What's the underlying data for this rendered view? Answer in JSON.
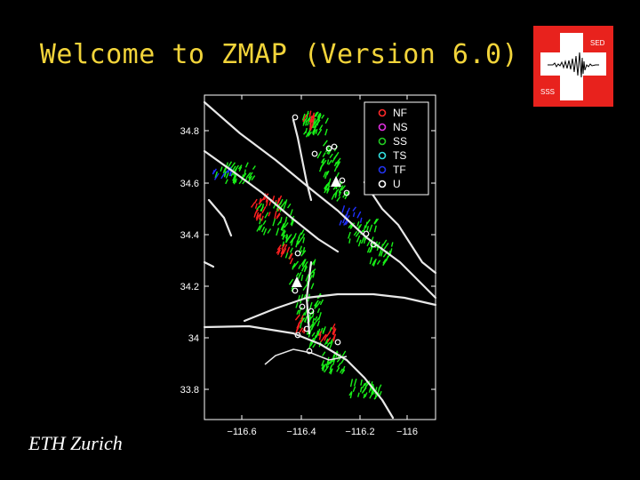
{
  "slide": {
    "title": "Welcome to ZMAP (Version 6.0)",
    "footer": "ETH Zurich"
  },
  "logo": {
    "top_text": "SED",
    "bottom_text": "SSS",
    "background_color": "#e8221d",
    "cross_color": "#ffffff"
  },
  "map": {
    "y_ticks": [
      "34.8",
      "34.6",
      "34.4",
      "34.2",
      "34",
      "33.8"
    ],
    "x_ticks": [
      "−116.6",
      "−116.4",
      "−116.2",
      "−116"
    ],
    "legend": [
      {
        "label": "NF",
        "color": "#ff2a2a"
      },
      {
        "label": "NS",
        "color": "#e030e0"
      },
      {
        "label": "SS",
        "color": "#22cc22"
      },
      {
        "label": "TS",
        "color": "#33e0e0"
      },
      {
        "label": "TF",
        "color": "#2233ee"
      },
      {
        "label": "U",
        "color": "#ffffff"
      }
    ],
    "colors": {
      "fault": "#e8e8e8",
      "frame": "#ffffff",
      "strike_slip": "#18f018",
      "normal": "#ff2020",
      "thrust": "#2030ff"
    }
  }
}
